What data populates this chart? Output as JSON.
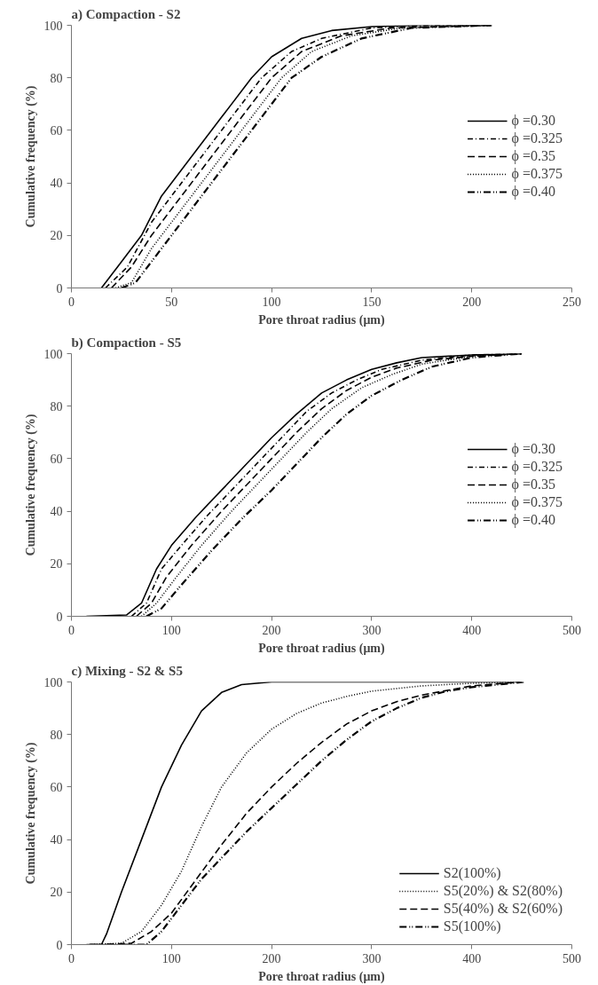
{
  "chart_data": [
    {
      "type": "line",
      "title": "a) Compaction - S2",
      "xlabel": "Pore throat radius (μm)",
      "ylabel": "Cumulative frequency (%)",
      "xlim": [
        0,
        250
      ],
      "xticks": [
        0,
        50,
        100,
        150,
        200,
        250
      ],
      "ylim": [
        0,
        100
      ],
      "yticks": [
        0,
        20,
        40,
        60,
        80,
        100
      ],
      "grid": false,
      "legend": "right",
      "marker": "none",
      "series": [
        {
          "name": "ϕ =0.30",
          "color": "#000000",
          "line_style": "solid",
          "x": [
            15,
            25,
            35,
            45,
            60,
            75,
            90,
            100,
            115,
            130,
            150,
            175,
            210
          ],
          "values": [
            0,
            10,
            20,
            35,
            50,
            65,
            80,
            88,
            95,
            98,
            99.5,
            100,
            100
          ]
        },
        {
          "name": "ϕ =0.325",
          "color": "#000000",
          "line_style": "dashdot",
          "x": [
            17,
            28,
            40,
            50,
            65,
            80,
            95,
            110,
            125,
            150,
            180,
            210
          ],
          "values": [
            0,
            8,
            25,
            35,
            50,
            65,
            80,
            90,
            95,
            99,
            100,
            100
          ]
        },
        {
          "name": "ϕ =0.35",
          "color": "#000000",
          "line_style": "dashed",
          "x": [
            20,
            30,
            40,
            55,
            70,
            85,
            100,
            115,
            135,
            160,
            210
          ],
          "values": [
            0,
            8,
            20,
            35,
            50,
            65,
            80,
            90,
            96,
            99,
            100
          ]
        },
        {
          "name": "ϕ =0.375",
          "color": "#000000",
          "line_style": "dotted",
          "x": [
            22,
            30,
            40,
            55,
            75,
            90,
            105,
            120,
            140,
            165,
            210
          ],
          "values": [
            0,
            2,
            15,
            30,
            50,
            65,
            80,
            90,
            96,
            99,
            100
          ]
        },
        {
          "name": "ϕ =0.40",
          "color": "#000000",
          "line_style": "dashdotdot",
          "x": [
            25,
            32,
            45,
            60,
            80,
            95,
            110,
            125,
            145,
            170,
            210
          ],
          "values": [
            0,
            2,
            15,
            30,
            50,
            65,
            80,
            88,
            95,
            99,
            100
          ]
        }
      ]
    },
    {
      "type": "line",
      "title": "b) Compaction - S5",
      "xlabel": "Pore throat radius (μm)",
      "ylabel": "Cumulative frequency (%)",
      "xlim": [
        0,
        500
      ],
      "xticks": [
        0,
        100,
        200,
        300,
        400,
        500
      ],
      "ylim": [
        0,
        100
      ],
      "yticks": [
        0,
        20,
        40,
        60,
        80,
        100
      ],
      "grid": false,
      "legend": "right",
      "marker": "none",
      "series": [
        {
          "name": "ϕ =0.30",
          "color": "#000000",
          "line_style": "solid",
          "x": [
            15,
            55,
            70,
            85,
            100,
            125,
            150,
            175,
            200,
            225,
            250,
            275,
            300,
            325,
            350,
            400,
            450
          ],
          "values": [
            0,
            0.5,
            5,
            18,
            27,
            38,
            48,
            58,
            68,
            77,
            85,
            90,
            94,
            96.5,
            98.5,
            99.5,
            100
          ]
        },
        {
          "name": "ϕ =0.325",
          "color": "#000000",
          "line_style": "dashdot",
          "x": [
            60,
            75,
            90,
            110,
            135,
            160,
            185,
            210,
            235,
            260,
            285,
            310,
            350,
            400,
            450
          ],
          "values": [
            0,
            5,
            18,
            27,
            38,
            48,
            58,
            68,
            78,
            85,
            90,
            94,
            97.5,
            99.5,
            100
          ]
        },
        {
          "name": "ϕ =0.35",
          "color": "#000000",
          "line_style": "dashed",
          "x": [
            65,
            80,
            95,
            120,
            150,
            175,
            200,
            225,
            250,
            275,
            300,
            325,
            360,
            400,
            450
          ],
          "values": [
            0,
            5,
            15,
            27,
            40,
            50,
            60,
            70,
            79,
            86,
            91,
            94.5,
            97.5,
            99,
            100
          ]
        },
        {
          "name": "ϕ =0.375",
          "color": "#000000",
          "line_style": "dotted",
          "x": [
            70,
            85,
            105,
            130,
            160,
            185,
            210,
            235,
            260,
            290,
            320,
            350,
            400,
            450
          ],
          "values": [
            0,
            5,
            15,
            27,
            40,
            50,
            60,
            70,
            79,
            87,
            92,
            96,
            99,
            100
          ]
        },
        {
          "name": "ϕ =0.40",
          "color": "#000000",
          "line_style": "dashdotdot",
          "x": [
            75,
            90,
            110,
            140,
            170,
            200,
            225,
            250,
            275,
            300,
            330,
            360,
            400,
            450
          ],
          "values": [
            0,
            3,
            12,
            25,
            37,
            48,
            58,
            68,
            77,
            84,
            90,
            95,
            98.5,
            100
          ]
        }
      ]
    },
    {
      "type": "line",
      "title": "c) Mixing - S2 & S5",
      "xlabel": "Pore throat radius (μm)",
      "ylabel": "Cumulative frequency (%)",
      "xlim": [
        0,
        500
      ],
      "xticks": [
        0,
        100,
        200,
        300,
        400,
        500
      ],
      "ylim": [
        0,
        100
      ],
      "yticks": [
        0,
        20,
        40,
        60,
        80,
        100
      ],
      "grid": false,
      "legend": "bottom right",
      "marker": "none",
      "series": [
        {
          "name": "S2(100%)",
          "color": "#000000",
          "line_style": "solid",
          "x": [
            15,
            30,
            35,
            50,
            70,
            90,
            110,
            130,
            150,
            170,
            200,
            450
          ],
          "values": [
            0,
            0,
            4,
            20,
            40,
            60,
            76,
            89,
            96,
            99,
            100,
            100
          ]
        },
        {
          "name": "S5(20%) & S2(80%)",
          "color": "#000000",
          "line_style": "dotted",
          "x": [
            20,
            50,
            70,
            90,
            110,
            130,
            150,
            175,
            200,
            225,
            250,
            275,
            300,
            350,
            400,
            445
          ],
          "values": [
            0,
            0.5,
            5,
            15,
            28,
            45,
            60,
            73,
            82,
            88,
            92,
            94.5,
            96.5,
            98.5,
            99.5,
            100
          ]
        },
        {
          "name": "S5(40%) & S2(60%)",
          "color": "#000000",
          "line_style": "dashed",
          "x": [
            25,
            60,
            80,
            100,
            125,
            150,
            175,
            200,
            225,
            250,
            275,
            300,
            325,
            350,
            400,
            448
          ],
          "values": [
            0,
            0.5,
            5,
            12,
            25,
            38,
            50,
            60,
            69,
            77,
            84,
            89,
            92.5,
            95,
            98.5,
            100
          ]
        },
        {
          "name": "S5(100%)",
          "color": "#000000",
          "line_style": "dashdotdot",
          "x": [
            18,
            75,
            90,
            110,
            130,
            150,
            175,
            200,
            225,
            250,
            275,
            300,
            325,
            350,
            375,
            400,
            452
          ],
          "values": [
            0,
            0,
            5,
            15,
            25,
            33,
            43,
            52,
            61,
            70,
            78,
            85,
            90,
            94,
            96.5,
            98,
            100
          ]
        }
      ]
    }
  ]
}
